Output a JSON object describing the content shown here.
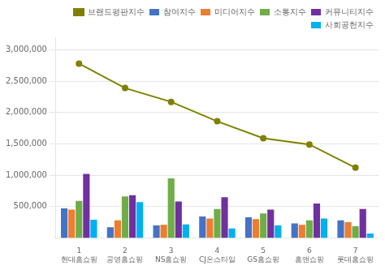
{
  "chart_data": {
    "type": "bar",
    "categories": [
      "1",
      "2",
      "3",
      "4",
      "5",
      "6",
      "7"
    ],
    "annotations": [
      {
        "category": "1",
        "text": "현대홈쇼핑"
      },
      {
        "category": "2",
        "text": "공영홈쇼핑"
      },
      {
        "category": "3",
        "text": "NS홈쇼핑"
      },
      {
        "category": "4",
        "text": "CJ온스타일"
      },
      {
        "category": "5",
        "text": "GS홈쇼핑"
      },
      {
        "category": "6",
        "text": "홈앤쇼핑"
      },
      {
        "category": "7",
        "text": "롯데홈쇼핑"
      }
    ],
    "series": [
      {
        "name": "참여지수",
        "type": "bar",
        "color": "#4472c4",
        "values": [
          470000,
          170000,
          200000,
          340000,
          330000,
          230000,
          280000
        ]
      },
      {
        "name": "미디어지수",
        "type": "bar",
        "color": "#ed7d31",
        "values": [
          450000,
          280000,
          210000,
          310000,
          300000,
          210000,
          250000
        ]
      },
      {
        "name": "소통지수",
        "type": "bar",
        "color": "#70ad47",
        "values": [
          590000,
          660000,
          950000,
          460000,
          390000,
          280000,
          185000
        ]
      },
      {
        "name": "커뮤니티지수",
        "type": "bar",
        "color": "#7030a0",
        "values": [
          1020000,
          680000,
          580000,
          650000,
          450000,
          550000,
          460000
        ]
      },
      {
        "name": "사회공헌지수",
        "type": "bar",
        "color": "#00b0f0",
        "values": [
          290000,
          570000,
          215000,
          150000,
          200000,
          310000,
          70000
        ]
      },
      {
        "name": "브랜드평판지수",
        "type": "line",
        "marker": "circle",
        "color": "#808000",
        "values": [
          2780000,
          2390000,
          2170000,
          1860000,
          1590000,
          1490000,
          1120000
        ]
      }
    ],
    "ylim": [
      0,
      3200000
    ],
    "yticks": [
      {
        "value": 500000,
        "label": "500,000"
      },
      {
        "value": 1000000,
        "label": "1,000,000"
      },
      {
        "value": 1500000,
        "label": "1,500,000"
      },
      {
        "value": 2000000,
        "label": "2,000,000"
      },
      {
        "value": 2500000,
        "label": "2,500,000"
      },
      {
        "value": 3000000,
        "label": "3,000,000"
      }
    ],
    "grid": true,
    "legend": "upper right"
  }
}
